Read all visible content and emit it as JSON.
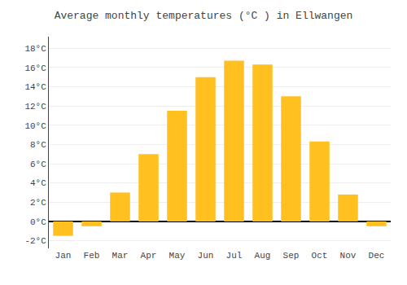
{
  "chart_data": {
    "type": "bar",
    "title": "Average monthly temperatures (°C ) in Ellwangen",
    "categories": [
      "Jan",
      "Feb",
      "Mar",
      "Apr",
      "May",
      "Jun",
      "Jul",
      "Aug",
      "Sep",
      "Oct",
      "Nov",
      "Dec"
    ],
    "values": [
      -1.5,
      -0.5,
      3.0,
      7.0,
      11.5,
      15.0,
      16.7,
      16.3,
      13.0,
      8.3,
      2.8,
      -0.5
    ],
    "color": "#FFC020",
    "ylim": [
      -2.8,
      19.2
    ],
    "yticks": [
      {
        "value": -2,
        "label": "-2°C"
      },
      {
        "value": 0,
        "label": "0°C"
      },
      {
        "value": 2,
        "label": "2°C"
      },
      {
        "value": 4,
        "label": "4°C"
      },
      {
        "value": 6,
        "label": "6°C"
      },
      {
        "value": 8,
        "label": "8°C"
      },
      {
        "value": 10,
        "label": "10°C"
      },
      {
        "value": 12,
        "label": "12°C"
      },
      {
        "value": 14,
        "label": "14°C"
      },
      {
        "value": 16,
        "label": "16°C"
      },
      {
        "value": 18,
        "label": "18°C"
      }
    ],
    "grid": true
  }
}
